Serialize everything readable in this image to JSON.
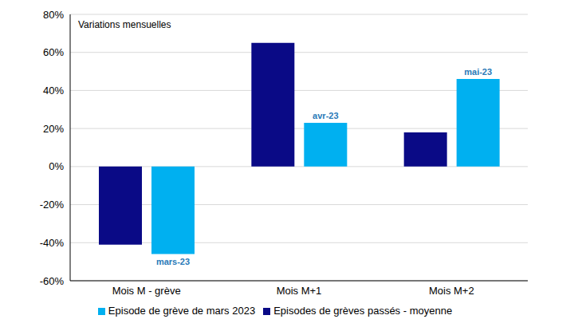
{
  "chart_data": {
    "type": "bar",
    "subtitle": "Variations mensuelles",
    "categories": [
      "Mois M - grève",
      "Mois M+1",
      "Mois M+2"
    ],
    "series": [
      {
        "name": "Episodes de grèves passés - moyenne",
        "color": "#0a0a86",
        "values": [
          -41,
          65,
          18
        ]
      },
      {
        "name": "Episode de grève de mars 2023",
        "color": "#00b0f0",
        "values": [
          -46,
          23,
          46
        ],
        "annotations": [
          "mars-23",
          "avr-23",
          "mai-23"
        ]
      }
    ],
    "ylim": [
      -60,
      80
    ],
    "yticks": [
      {
        "value": -60,
        "label": "-60%"
      },
      {
        "value": -40,
        "label": "-40%"
      },
      {
        "value": -20,
        "label": "-20%"
      },
      {
        "value": 0,
        "label": "0%"
      },
      {
        "value": 20,
        "label": "20%"
      },
      {
        "value": 40,
        "label": "40%"
      },
      {
        "value": 60,
        "label": "60%"
      },
      {
        "value": 80,
        "label": "80%"
      }
    ],
    "grid": true,
    "legend": "bottom"
  }
}
